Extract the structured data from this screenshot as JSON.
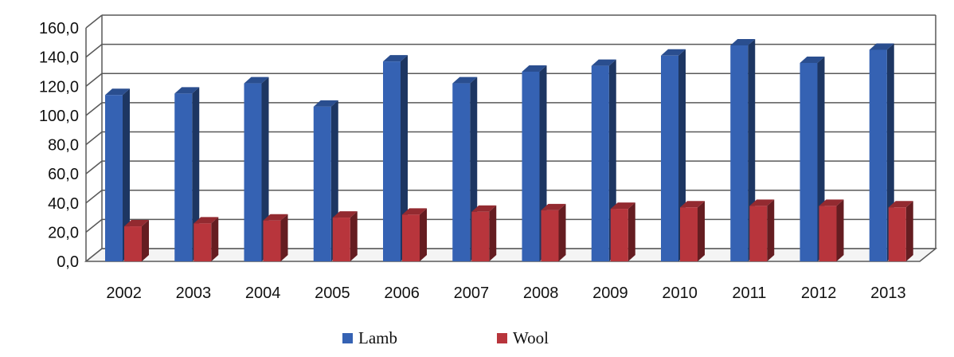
{
  "chart_data": {
    "type": "bar",
    "style": "3d-clustered-column",
    "title": "",
    "xlabel": "",
    "ylabel": "",
    "categories": [
      "2002",
      "2003",
      "2004",
      "2005",
      "2006",
      "2007",
      "2008",
      "2009",
      "2010",
      "2011",
      "2012",
      "2013"
    ],
    "series": [
      {
        "name": "Lamb",
        "color": "#3562b3",
        "values": [
          114,
          115,
          122,
          106,
          137,
          122,
          130,
          134,
          141,
          148,
          136,
          145
        ]
      },
      {
        "name": "Wool",
        "color": "#b8353c",
        "values": [
          24,
          26,
          28,
          30,
          32,
          34,
          35,
          36,
          37,
          38,
          38,
          37
        ]
      }
    ],
    "ylim": [
      0,
      160
    ],
    "y_ticks": [
      "0,0",
      "20,0",
      "40,0",
      "60,0",
      "80,0",
      "100,0",
      "120,0",
      "140,0",
      "160,0"
    ],
    "grid": true,
    "legend_position": "bottom"
  }
}
